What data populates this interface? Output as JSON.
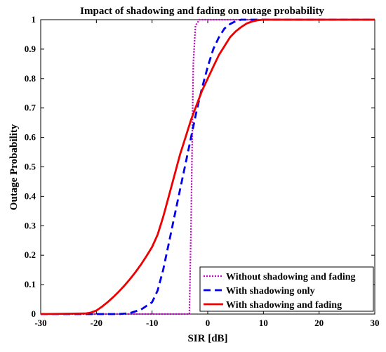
{
  "chart_data": {
    "type": "line",
    "title": "Impact of shadowing and fading on outage probability",
    "xlabel": "SIR [dB]",
    "ylabel": "Outage Probability",
    "xlim": [
      -30,
      30
    ],
    "ylim": [
      0,
      1
    ],
    "xticks": [
      -30,
      -20,
      -10,
      0,
      10,
      20,
      30
    ],
    "yticks": [
      0,
      0.1,
      0.2,
      0.3,
      0.4,
      0.5,
      0.6,
      0.7,
      0.8,
      0.9,
      1
    ],
    "grid": false,
    "legend_position": "bottom-right",
    "series": [
      {
        "name": "Without shadowing and fading",
        "color": "#cc00cc",
        "style": "dotted",
        "x": [
          -30,
          -3.3,
          -3.0,
          -2.6,
          -2.2,
          -1.5,
          30
        ],
        "y": [
          0,
          0.0,
          0.3,
          0.85,
          0.98,
          1.0,
          1.0
        ]
      },
      {
        "name": "With shadowing only",
        "color": "#0000ee",
        "style": "dashed",
        "x": [
          -30,
          -16,
          -14,
          -12,
          -10,
          -9,
          -8,
          -7,
          -6,
          -5,
          -4,
          -3,
          -2,
          -1,
          0,
          1,
          2,
          3,
          4,
          5,
          6,
          8,
          10,
          30
        ],
        "y": [
          0,
          0.0,
          0.003,
          0.015,
          0.04,
          0.08,
          0.15,
          0.24,
          0.33,
          0.42,
          0.51,
          0.6,
          0.69,
          0.77,
          0.84,
          0.9,
          0.94,
          0.97,
          0.985,
          0.995,
          1.0,
          1.0,
          1.0,
          1.0
        ]
      },
      {
        "name": "With shadowing and fading",
        "color": "#ee0000",
        "style": "solid",
        "x": [
          -30,
          -22,
          -21,
          -20,
          -19,
          -18,
          -17,
          -16,
          -15,
          -14,
          -13,
          -12,
          -11,
          -10,
          -9,
          -8,
          -7,
          -6,
          -5,
          -4,
          -3,
          -2,
          -1,
          0,
          1,
          2,
          3,
          4,
          5,
          6,
          7,
          8,
          9,
          10,
          30
        ],
        "y": [
          0,
          0.002,
          0.005,
          0.012,
          0.025,
          0.04,
          0.057,
          0.076,
          0.096,
          0.118,
          0.142,
          0.168,
          0.197,
          0.228,
          0.27,
          0.33,
          0.4,
          0.47,
          0.54,
          0.6,
          0.66,
          0.71,
          0.76,
          0.8,
          0.84,
          0.88,
          0.91,
          0.94,
          0.96,
          0.975,
          0.987,
          0.994,
          0.998,
          1.0,
          1.0
        ]
      }
    ]
  }
}
